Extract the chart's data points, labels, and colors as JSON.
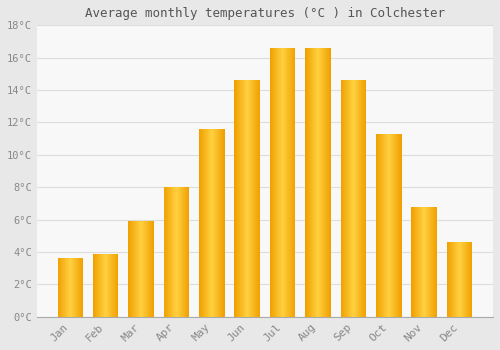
{
  "title": "Average monthly temperatures (°C ) in Colchester",
  "months": [
    "Jan",
    "Feb",
    "Mar",
    "Apr",
    "May",
    "Jun",
    "Jul",
    "Aug",
    "Sep",
    "Oct",
    "Nov",
    "Dec"
  ],
  "temperatures": [
    3.6,
    3.9,
    5.9,
    8.0,
    11.6,
    14.6,
    16.6,
    16.6,
    14.6,
    11.3,
    6.8,
    4.6
  ],
  "bar_color_left": "#F0A000",
  "bar_color_center": "#FFD040",
  "bar_color_right": "#F0A000",
  "background_color": "#E8E8E8",
  "plot_bg_color": "#F8F8F8",
  "grid_color": "#DDDDDD",
  "tick_label_color": "#888888",
  "title_color": "#555555",
  "ylim": [
    0,
    18
  ],
  "yticks": [
    0,
    2,
    4,
    6,
    8,
    10,
    12,
    14,
    16,
    18
  ],
  "ytick_labels": [
    "0°C",
    "2°C",
    "4°C",
    "6°C",
    "8°C",
    "10°C",
    "12°C",
    "14°C",
    "16°C",
    "18°C"
  ],
  "figsize": [
    5.0,
    3.5
  ],
  "dpi": 100
}
